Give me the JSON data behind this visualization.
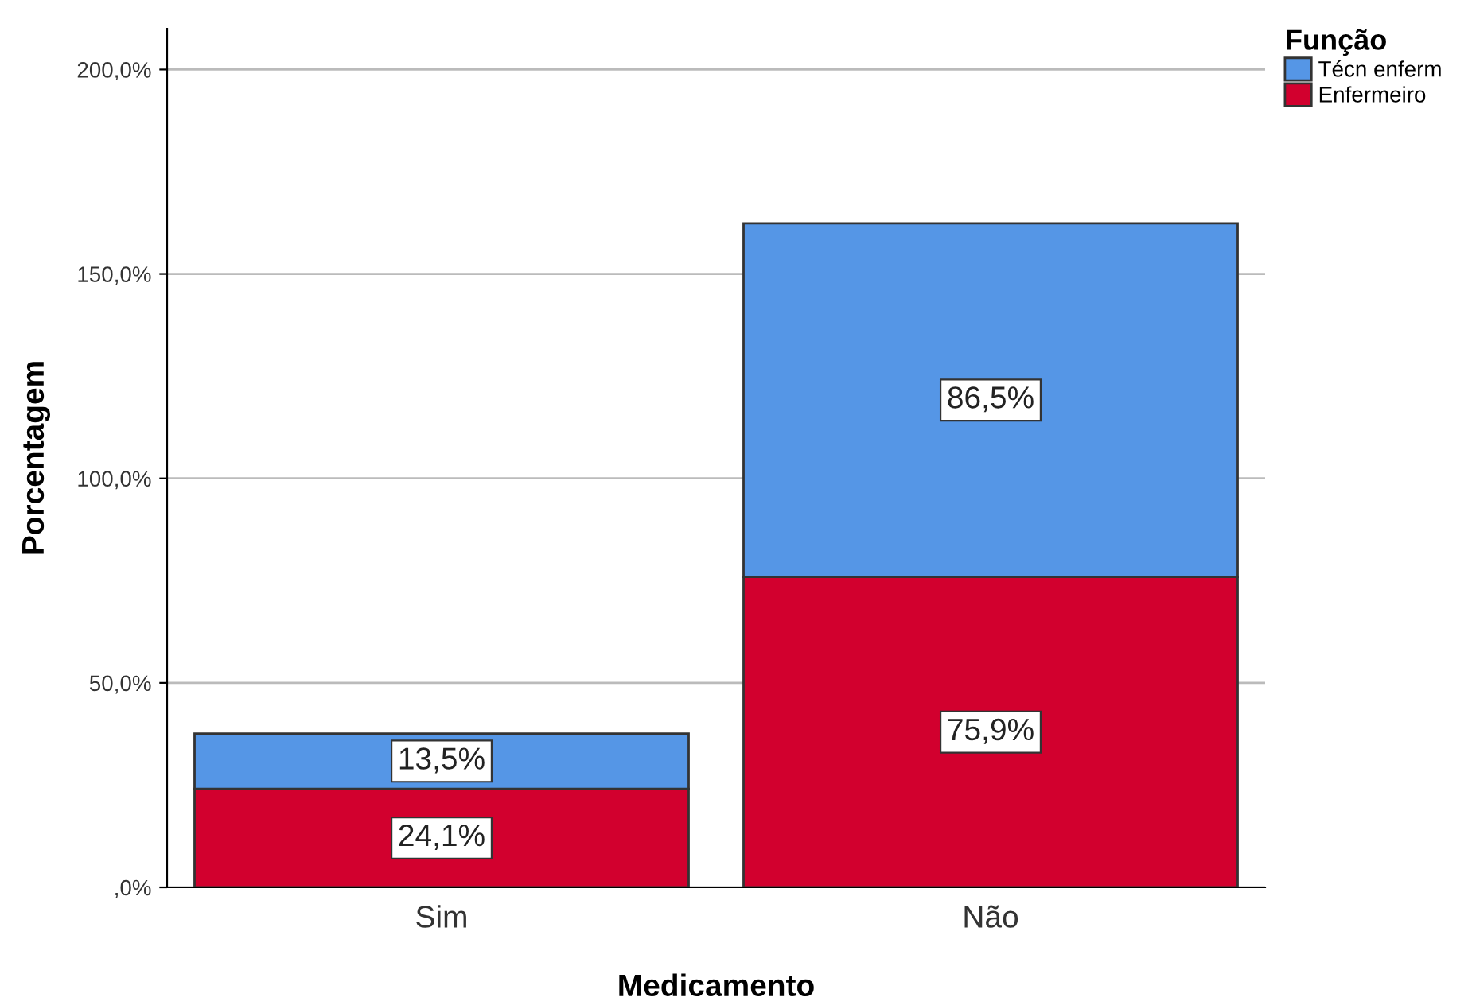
{
  "chart_data": {
    "type": "bar",
    "stacked": true,
    "xlabel": "Medicamento",
    "ylabel": "Porcentagem",
    "legend_title": "Função",
    "legend": "top right",
    "categories": [
      "Sim",
      "Não"
    ],
    "series": [
      {
        "name": "Enfermeiro",
        "color": "#d2002e",
        "values": [
          24.1,
          75.9
        ],
        "value_labels": [
          "24,1%",
          "75,9%"
        ]
      },
      {
        "name": "Técn enferm",
        "color": "#5596e6",
        "values": [
          13.5,
          86.5
        ],
        "value_labels": [
          "13,5%",
          "86,5%"
        ]
      }
    ],
    "ylim": [
      0,
      210
    ],
    "yticks": [
      {
        "value": 0,
        "label": ",0%"
      },
      {
        "value": 50,
        "label": "50,0%"
      },
      {
        "value": 100,
        "label": "100,0%"
      },
      {
        "value": 150,
        "label": "150,0%"
      },
      {
        "value": 200,
        "label": "200,0%"
      }
    ],
    "grid": "y"
  }
}
